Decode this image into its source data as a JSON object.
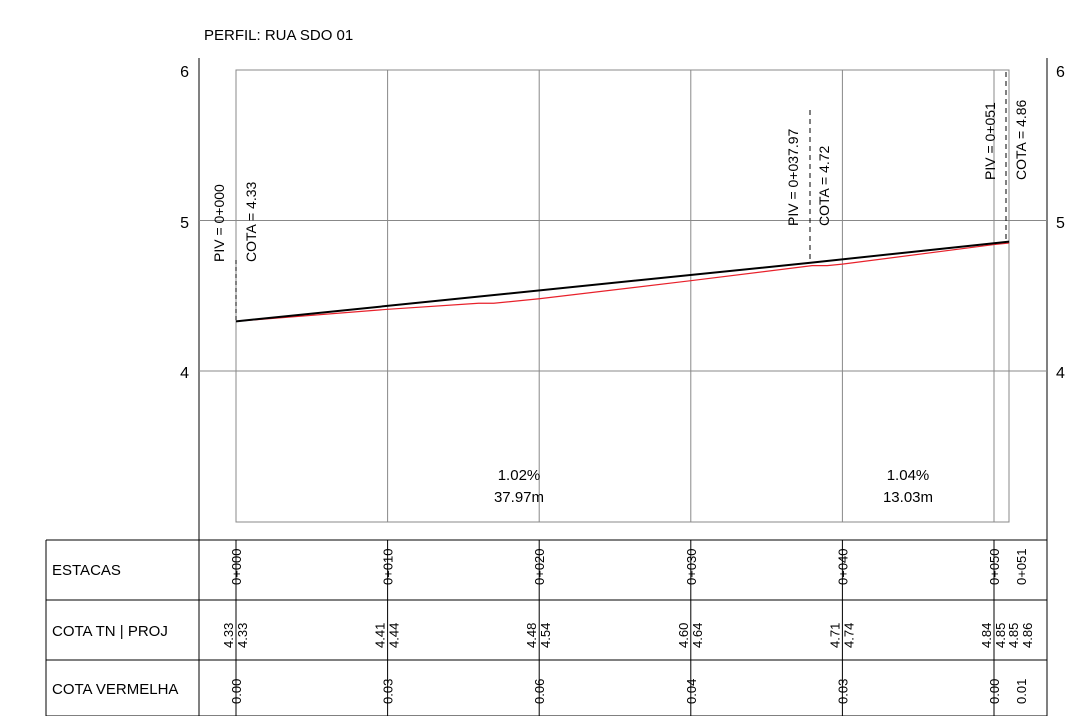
{
  "title": "PERFIL: RUA SDO 01",
  "y_axis": {
    "labels": [
      "6",
      "5",
      "4"
    ]
  },
  "piv_labels": [
    {
      "piv": "PIV = 0+000",
      "cota": "COTA = 4.33"
    },
    {
      "piv": "PIV = 0+037.97",
      "cota": "COTA = 4.72"
    },
    {
      "piv": "PIV = 0+051",
      "cota": "COTA = 4.86"
    }
  ],
  "grades": [
    {
      "percent": "1.02%",
      "length": "37.97m"
    },
    {
      "percent": "1.04%",
      "length": "13.03m"
    }
  ],
  "table": {
    "row_labels": [
      "ESTACAS",
      "COTA TN | PROJ",
      "COTA VERMELHA"
    ],
    "estacas": [
      "0+000",
      "0+010",
      "0+020",
      "0+030",
      "0+040",
      "0+050",
      "0+051"
    ],
    "cota_tn": [
      "4.33",
      "4.41",
      "4.48",
      "4.60",
      "4.71",
      "4.84",
      "4.85"
    ],
    "cota_proj": [
      "4.33",
      "4.44",
      "4.54",
      "4.64",
      "4.74",
      "4.85",
      "4.86"
    ],
    "cota_vermelha": [
      "0.00",
      "0.03",
      "0.06",
      "0.04",
      "0.03",
      "0.00",
      "0.01"
    ]
  },
  "chart_data": {
    "type": "line",
    "title": "PERFIL: RUA SDO 01",
    "xlim": [
      0,
      51
    ],
    "ylim": [
      3,
      6
    ],
    "grid": true,
    "series": [
      {
        "color": "#000000",
        "x": [
          0,
          37.97,
          51
        ],
        "values": [
          4.33,
          4.72,
          4.86
        ]
      },
      {
        "color": "#e8212b",
        "x": [
          0,
          10,
          16,
          17,
          20,
          30,
          38,
          39,
          40,
          50,
          51
        ],
        "values": [
          4.33,
          4.41,
          4.45,
          4.45,
          4.48,
          4.6,
          4.7,
          4.7,
          4.71,
          4.84,
          4.85
        ]
      }
    ]
  },
  "colors": {
    "design_line": "#000000",
    "terrain_line": "#e8212b",
    "grid": "#888888"
  }
}
